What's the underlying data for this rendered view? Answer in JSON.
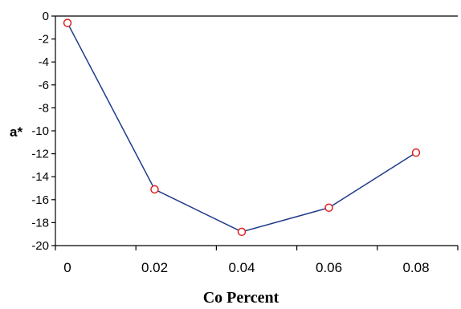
{
  "chart_data": {
    "type": "line",
    "title": "",
    "xlabel": "Co Percent",
    "ylabel": "a*",
    "x": [
      0,
      0.02,
      0.04,
      0.06,
      0.08
    ],
    "x_tick_labels": [
      "0",
      "0.02",
      "0.04",
      "0.06",
      "0.08"
    ],
    "y_tick_labels": [
      "0",
      "-2",
      "-4",
      "-6",
      "-8",
      "-10",
      "-12",
      "-14",
      "-16",
      "-18",
      "-20"
    ],
    "y_ticks": [
      0,
      -2,
      -4,
      -6,
      -8,
      -10,
      -12,
      -14,
      -16,
      -18,
      -20
    ],
    "xlim": [
      0,
      0.09
    ],
    "ylim": [
      -20,
      0
    ],
    "grid": false,
    "legend": "none",
    "series": [
      {
        "values": [
          -0.6,
          -15.1,
          -18.8,
          -16.7,
          -11.9
        ],
        "line_color": "#1f3a8a",
        "marker_color": "#e02020",
        "marker": "open-circle"
      }
    ]
  }
}
